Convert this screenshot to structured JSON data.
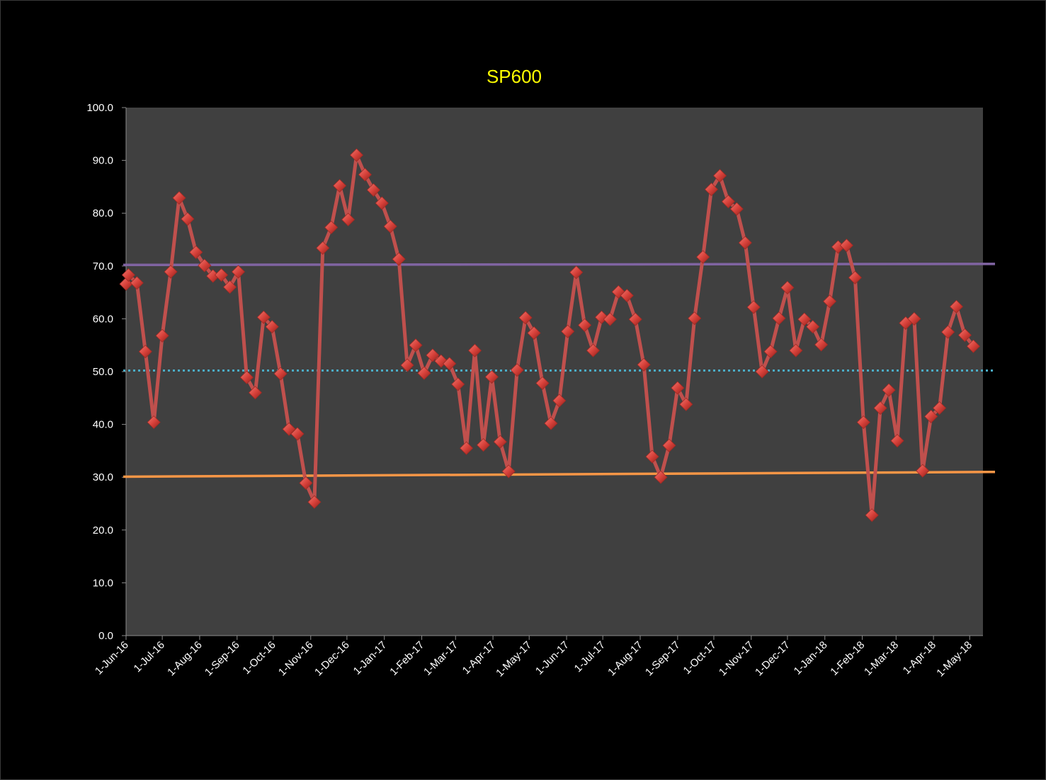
{
  "chart_data": {
    "type": "line",
    "title": "SP600",
    "xlabel": "",
    "ylabel": "",
    "ylim": [
      0,
      100
    ],
    "yticks": [
      "0.0",
      "10.0",
      "20.0",
      "30.0",
      "40.0",
      "50.0",
      "60.0",
      "70.0",
      "80.0",
      "90.0",
      "100.0"
    ],
    "x_tick_labels": [
      "1-Jun-16",
      "1-Jul-16",
      "1-Aug-16",
      "1-Sep-16",
      "1-Oct-16",
      "1-Nov-16",
      "1-Dec-16",
      "1-Jan-17",
      "1-Feb-17",
      "1-Mar-17",
      "1-Apr-17",
      "1-May-17",
      "1-Jun-17",
      "1-Jul-17",
      "1-Aug-17",
      "1-Sep-17",
      "1-Oct-17",
      "1-Nov-17",
      "1-Dec-17",
      "1-Jan-18",
      "1-Feb-18",
      "1-Mar-18",
      "1-Apr-18",
      "1-May-18"
    ],
    "x_range": [
      "2016-06-01",
      "2018-05-12"
    ],
    "grid": false,
    "legend": "none",
    "colors": {
      "background": "#000000",
      "plot_area": "#404040",
      "series": "#c0504d",
      "marker": "#d8403a",
      "upper_line": "#8064a2",
      "mid_line": "#4bacc6",
      "lower_line": "#f79646",
      "title": "#ffff00",
      "ticks": "#ffffff"
    },
    "series": [
      {
        "values": [
          [
            "2016-06-01",
            66.6
          ],
          [
            "2016-06-03",
            68.3
          ],
          [
            "2016-06-10",
            66.8
          ],
          [
            "2016-06-17",
            53.8
          ],
          [
            "2016-06-24",
            40.4
          ],
          [
            "2016-07-01",
            56.8
          ],
          [
            "2016-07-08",
            68.9
          ],
          [
            "2016-07-15",
            82.9
          ],
          [
            "2016-07-22",
            78.9
          ],
          [
            "2016-07-29",
            72.6
          ],
          [
            "2016-08-05",
            70.1
          ],
          [
            "2016-08-12",
            68.1
          ],
          [
            "2016-08-19",
            68.3
          ],
          [
            "2016-08-26",
            66.0
          ],
          [
            "2016-09-02",
            68.9
          ],
          [
            "2016-09-09",
            48.9
          ],
          [
            "2016-09-16",
            46.0
          ],
          [
            "2016-09-23",
            60.3
          ],
          [
            "2016-09-30",
            58.5
          ],
          [
            "2016-10-07",
            49.6
          ],
          [
            "2016-10-14",
            39.1
          ],
          [
            "2016-10-21",
            38.2
          ],
          [
            "2016-10-28",
            28.9
          ],
          [
            "2016-11-04",
            25.3
          ],
          [
            "2016-11-11",
            73.4
          ],
          [
            "2016-11-18",
            77.3
          ],
          [
            "2016-11-25",
            85.2
          ],
          [
            "2016-12-02",
            78.8
          ],
          [
            "2016-12-09",
            91.0
          ],
          [
            "2016-12-16",
            87.3
          ],
          [
            "2016-12-23",
            84.4
          ],
          [
            "2016-12-30",
            81.9
          ],
          [
            "2017-01-06",
            77.5
          ],
          [
            "2017-01-13",
            71.3
          ],
          [
            "2017-01-20",
            51.2
          ],
          [
            "2017-01-27",
            55.0
          ],
          [
            "2017-02-03",
            49.7
          ],
          [
            "2017-02-10",
            53.1
          ],
          [
            "2017-02-17",
            52.0
          ],
          [
            "2017-02-24",
            51.5
          ],
          [
            "2017-03-03",
            47.6
          ],
          [
            "2017-03-10",
            35.5
          ],
          [
            "2017-03-17",
            54.0
          ],
          [
            "2017-03-24",
            36.1
          ],
          [
            "2017-03-31",
            49.0
          ],
          [
            "2017-04-07",
            36.7
          ],
          [
            "2017-04-14",
            31.1
          ],
          [
            "2017-04-21",
            50.3
          ],
          [
            "2017-04-28",
            60.2
          ],
          [
            "2017-05-05",
            57.3
          ],
          [
            "2017-05-12",
            47.8
          ],
          [
            "2017-05-19",
            40.2
          ],
          [
            "2017-05-26",
            44.5
          ],
          [
            "2017-06-02",
            57.6
          ],
          [
            "2017-06-09",
            68.8
          ],
          [
            "2017-06-16",
            58.8
          ],
          [
            "2017-06-23",
            54.0
          ],
          [
            "2017-06-30",
            60.3
          ],
          [
            "2017-07-07",
            59.9
          ],
          [
            "2017-07-14",
            65.1
          ],
          [
            "2017-07-21",
            64.4
          ],
          [
            "2017-07-28",
            59.9
          ],
          [
            "2017-08-04",
            51.3
          ],
          [
            "2017-08-11",
            33.9
          ],
          [
            "2017-08-18",
            30.0
          ],
          [
            "2017-08-25",
            36.0
          ],
          [
            "2017-09-01",
            46.9
          ],
          [
            "2017-09-08",
            43.8
          ],
          [
            "2017-09-15",
            60.1
          ],
          [
            "2017-09-22",
            71.7
          ],
          [
            "2017-09-29",
            84.5
          ],
          [
            "2017-10-06",
            87.1
          ],
          [
            "2017-10-13",
            82.2
          ],
          [
            "2017-10-20",
            80.8
          ],
          [
            "2017-10-27",
            74.4
          ],
          [
            "2017-11-03",
            62.2
          ],
          [
            "2017-11-10",
            50.0
          ],
          [
            "2017-11-17",
            53.8
          ],
          [
            "2017-11-24",
            60.1
          ],
          [
            "2017-12-01",
            65.9
          ],
          [
            "2017-12-08",
            54.0
          ],
          [
            "2017-12-15",
            59.9
          ],
          [
            "2017-12-22",
            58.5
          ],
          [
            "2017-12-29",
            55.1
          ],
          [
            "2018-01-05",
            63.3
          ],
          [
            "2018-01-12",
            73.6
          ],
          [
            "2018-01-19",
            73.9
          ],
          [
            "2018-01-26",
            67.8
          ],
          [
            "2018-02-02",
            40.4
          ],
          [
            "2018-02-09",
            22.8
          ],
          [
            "2018-02-16",
            43.1
          ],
          [
            "2018-02-23",
            46.5
          ],
          [
            "2018-03-02",
            36.9
          ],
          [
            "2018-03-09",
            59.2
          ],
          [
            "2018-03-16",
            60.0
          ],
          [
            "2018-03-23",
            31.2
          ],
          [
            "2018-03-30",
            41.5
          ],
          [
            "2018-04-06",
            43.1
          ],
          [
            "2018-04-13",
            57.5
          ],
          [
            "2018-04-20",
            62.3
          ],
          [
            "2018-04-27",
            56.9
          ],
          [
            "2018-05-04",
            54.8
          ]
        ]
      }
    ],
    "reference_lines": [
      {
        "style": "solid",
        "color": "#8064a2",
        "from": 70.2,
        "to": 70.4
      },
      {
        "style": "dotted",
        "color": "#4bacc6",
        "from": 50.2,
        "to": 50.2
      },
      {
        "style": "solid",
        "color": "#f79646",
        "from": 30.1,
        "to": 31.0
      }
    ]
  }
}
